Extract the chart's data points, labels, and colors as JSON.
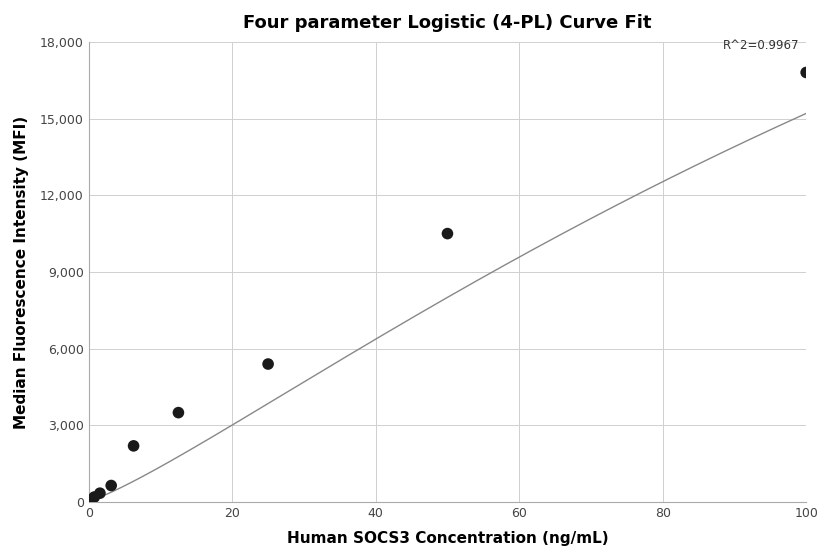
{
  "title": "Four parameter Logistic (4-PL) Curve Fit",
  "xlabel": "Human SOCS3 Concentration (ng/mL)",
  "ylabel": "Median Fluorescence Intensity (MFI)",
  "scatter_x": [
    0.39,
    0.78,
    1.56,
    3.13,
    6.25,
    12.5,
    25,
    50,
    100
  ],
  "scatter_y": [
    100,
    200,
    350,
    650,
    2200,
    3500,
    5400,
    10500,
    16800
  ],
  "xlim": [
    0,
    100
  ],
  "ylim": [
    0,
    18000
  ],
  "xticks": [
    0,
    20,
    40,
    60,
    80,
    100
  ],
  "yticks": [
    0,
    3000,
    6000,
    9000,
    12000,
    15000,
    18000
  ],
  "r_squared": "R^2=0.9967",
  "r2_x": 99,
  "r2_y": 17600,
  "dot_color": "#1a1a1a",
  "dot_size": 70,
  "line_color": "#888888",
  "grid_color": "#d0d0d0",
  "background_color": "#ffffff",
  "title_fontsize": 13,
  "label_fontsize": 11,
  "tick_fontsize": 9
}
